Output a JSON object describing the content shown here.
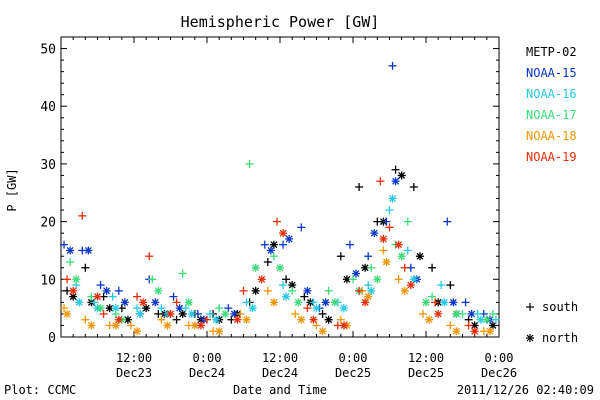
{
  "chart_data": {
    "type": "scatter",
    "title": "Hemispheric Power [GW]",
    "xlabel": "Date and Time",
    "ylabel": "P [GW]",
    "ylim": [
      0,
      52
    ],
    "yticks": [
      0,
      10,
      20,
      30,
      40,
      50
    ],
    "xlim": [
      "2011-12-23 00:00",
      "2011-12-26 00:00"
    ],
    "x_ticks": [
      {
        "x": "2011-12-23 12:00",
        "label": "12:00",
        "sublabel": "Dec23"
      },
      {
        "x": "2011-12-24 00:00",
        "label": "0:00",
        "sublabel": "Dec24"
      },
      {
        "x": "2011-12-24 12:00",
        "label": "12:00",
        "sublabel": "Dec24"
      },
      {
        "x": "2011-12-25 00:00",
        "label": "0:00",
        "sublabel": "Dec25"
      },
      {
        "x": "2011-12-25 12:00",
        "label": "12:00",
        "sublabel": "Dec25"
      },
      {
        "x": "2011-12-26 00:00",
        "label": "0:00",
        "sublabel": "Dec26"
      }
    ],
    "legend": {
      "placement": "right",
      "marker_labels": {
        "south": "south",
        "north": "north"
      }
    },
    "series": [
      {
        "name": "METP-02",
        "color": "#000000",
        "south": [
          [
            "2011-12-23 01:00",
            8
          ],
          [
            "2011-12-23 04:00",
            12
          ],
          [
            "2011-12-23 07:00",
            7
          ],
          [
            "2011-12-23 10:00",
            5
          ],
          [
            "2011-12-23 13:00",
            4
          ],
          [
            "2011-12-23 16:00",
            4
          ],
          [
            "2011-12-23 19:00",
            3
          ],
          [
            "2011-12-23 22:00",
            4
          ],
          [
            "2011-12-24 01:00",
            4
          ],
          [
            "2011-12-24 04:00",
            3
          ],
          [
            "2011-12-24 07:00",
            6
          ],
          [
            "2011-12-24 10:00",
            13
          ],
          [
            "2011-12-24 13:00",
            10
          ],
          [
            "2011-12-24 16:00",
            7
          ],
          [
            "2011-12-24 19:00",
            4
          ],
          [
            "2011-12-24 22:00",
            14
          ],
          [
            "2011-12-25 01:00",
            26
          ],
          [
            "2011-12-25 04:00",
            20
          ],
          [
            "2011-12-25 07:00",
            29
          ],
          [
            "2011-12-25 10:00",
            26
          ],
          [
            "2011-12-25 13:00",
            12
          ],
          [
            "2011-12-25 16:00",
            9
          ],
          [
            "2011-12-25 19:00",
            3
          ],
          [
            "2011-12-25 22:00",
            3
          ]
        ],
        "north": [
          [
            "2011-12-23 02:00",
            7
          ],
          [
            "2011-12-23 05:00",
            6
          ],
          [
            "2011-12-23 08:00",
            5
          ],
          [
            "2011-12-23 11:00",
            3
          ],
          [
            "2011-12-23 14:00",
            5
          ],
          [
            "2011-12-23 17:00",
            4
          ],
          [
            "2011-12-23 20:00",
            4
          ],
          [
            "2011-12-23 23:00",
            3
          ],
          [
            "2011-12-24 02:00",
            3
          ],
          [
            "2011-12-24 05:00",
            4
          ],
          [
            "2011-12-24 08:00",
            8
          ],
          [
            "2011-12-24 11:00",
            16
          ],
          [
            "2011-12-24 14:00",
            9
          ],
          [
            "2011-12-24 17:00",
            6
          ],
          [
            "2011-12-24 20:00",
            3
          ],
          [
            "2011-12-24 23:00",
            10
          ],
          [
            "2011-12-25 02:00",
            12
          ],
          [
            "2011-12-25 05:00",
            20
          ],
          [
            "2011-12-25 08:00",
            28
          ],
          [
            "2011-12-25 11:00",
            14
          ],
          [
            "2011-12-25 14:00",
            6
          ],
          [
            "2011-12-25 17:00",
            4
          ],
          [
            "2011-12-25 20:00",
            2
          ],
          [
            "2011-12-25 23:00",
            2
          ]
        ]
      },
      {
        "name": "NOAA-15",
        "color": "#0a37c8",
        "south": [
          [
            "2011-12-23 00:30",
            16
          ],
          [
            "2011-12-23 03:30",
            15
          ],
          [
            "2011-12-23 06:30",
            9
          ],
          [
            "2011-12-23 09:30",
            8
          ],
          [
            "2011-12-23 14:30",
            10
          ],
          [
            "2011-12-23 18:30",
            7
          ],
          [
            "2011-12-23 22:30",
            4
          ],
          [
            "2011-12-24 03:30",
            5
          ],
          [
            "2011-12-24 09:30",
            16
          ],
          [
            "2011-12-24 12:30",
            16
          ],
          [
            "2011-12-24 15:30",
            19
          ],
          [
            "2011-12-24 18:30",
            5
          ],
          [
            "2011-12-24 23:30",
            16
          ],
          [
            "2011-12-25 02:30",
            14
          ],
          [
            "2011-12-25 05:30",
            20
          ],
          [
            "2011-12-25 06:30",
            47
          ],
          [
            "2011-12-25 09:30",
            12
          ],
          [
            "2011-12-25 15:30",
            20
          ],
          [
            "2011-12-25 18:30",
            6
          ],
          [
            "2011-12-25 21:30",
            4
          ]
        ],
        "north": [
          [
            "2011-12-23 01:30",
            15
          ],
          [
            "2011-12-23 04:30",
            15
          ],
          [
            "2011-12-23 07:30",
            8
          ],
          [
            "2011-12-23 10:30",
            6
          ],
          [
            "2011-12-23 15:30",
            6
          ],
          [
            "2011-12-23 19:30",
            5
          ],
          [
            "2011-12-23 23:30",
            3
          ],
          [
            "2011-12-24 04:30",
            4
          ],
          [
            "2011-12-24 10:30",
            15
          ],
          [
            "2011-12-24 13:30",
            17
          ],
          [
            "2011-12-24 16:30",
            8
          ],
          [
            "2011-12-24 19:30",
            6
          ],
          [
            "2011-12-25 00:30",
            11
          ],
          [
            "2011-12-25 03:30",
            18
          ],
          [
            "2011-12-25 07:00",
            27
          ],
          [
            "2011-12-25 10:30",
            10
          ],
          [
            "2011-12-25 16:30",
            6
          ],
          [
            "2011-12-25 19:30",
            4
          ],
          [
            "2011-12-25 22:30",
            3
          ]
        ]
      },
      {
        "name": "NOAA-16",
        "color": "#28c8e6",
        "south": [
          [
            "2011-12-23 02:30",
            9
          ],
          [
            "2011-12-23 05:30",
            6
          ],
          [
            "2011-12-23 08:30",
            7
          ],
          [
            "2011-12-23 12:30",
            5
          ],
          [
            "2011-12-23 16:30",
            5
          ],
          [
            "2011-12-23 20:30",
            5
          ],
          [
            "2011-12-24 00:30",
            4
          ],
          [
            "2011-12-24 06:30",
            6
          ],
          [
            "2011-12-24 12:30",
            9
          ],
          [
            "2011-12-24 17:30",
            6
          ],
          [
            "2011-12-24 21:30",
            6
          ],
          [
            "2011-12-25 02:30",
            9
          ],
          [
            "2011-12-25 06:00",
            22
          ],
          [
            "2011-12-25 09:00",
            15
          ],
          [
            "2011-12-25 14:30",
            9
          ],
          [
            "2011-12-25 20:30",
            4
          ],
          [
            "2011-12-25 23:30",
            3
          ]
        ],
        "north": [
          [
            "2011-12-23 03:00",
            6
          ],
          [
            "2011-12-23 06:00",
            5
          ],
          [
            "2011-12-23 09:00",
            5
          ],
          [
            "2011-12-23 13:00",
            4
          ],
          [
            "2011-12-23 17:30",
            4
          ],
          [
            "2011-12-23 21:30",
            4
          ],
          [
            "2011-12-24 01:30",
            3
          ],
          [
            "2011-12-24 07:30",
            5
          ],
          [
            "2011-12-24 13:00",
            7
          ],
          [
            "2011-12-24 18:00",
            5
          ],
          [
            "2011-12-24 22:30",
            5
          ],
          [
            "2011-12-25 03:00",
            8
          ],
          [
            "2011-12-25 06:30",
            24
          ],
          [
            "2011-12-25 10:00",
            10
          ],
          [
            "2011-12-25 15:00",
            6
          ],
          [
            "2011-12-25 21:00",
            3
          ]
        ]
      },
      {
        "name": "NOAA-17",
        "color": "#3cdc78",
        "south": [
          [
            "2011-12-23 01:30",
            13
          ],
          [
            "2011-12-23 05:00",
            7
          ],
          [
            "2011-12-23 09:00",
            4
          ],
          [
            "2011-12-23 15:00",
            10
          ],
          [
            "2011-12-23 20:00",
            11
          ],
          [
            "2011-12-24 02:00",
            5
          ],
          [
            "2011-12-24 07:00",
            30
          ],
          [
            "2011-12-24 11:00",
            14
          ],
          [
            "2011-12-24 14:00",
            8
          ],
          [
            "2011-12-24 20:00",
            8
          ],
          [
            "2011-12-25 00:00",
            10
          ],
          [
            "2011-12-25 03:00",
            12
          ],
          [
            "2011-12-25 07:00",
            16
          ],
          [
            "2011-12-25 09:00",
            20
          ],
          [
            "2011-12-25 13:00",
            7
          ],
          [
            "2011-12-25 18:00",
            4
          ],
          [
            "2011-12-25 23:00",
            4
          ]
        ],
        "north": [
          [
            "2011-12-23 02:30",
            10
          ],
          [
            "2011-12-23 06:30",
            5
          ],
          [
            "2011-12-23 10:00",
            3
          ],
          [
            "2011-12-23 16:00",
            8
          ],
          [
            "2011-12-23 21:00",
            6
          ],
          [
            "2011-12-24 03:00",
            4
          ],
          [
            "2011-12-24 08:00",
            12
          ],
          [
            "2011-12-24 12:00",
            12
          ],
          [
            "2011-12-24 15:00",
            6
          ],
          [
            "2011-12-24 21:00",
            6
          ],
          [
            "2011-12-25 01:00",
            8
          ],
          [
            "2011-12-25 04:00",
            10
          ],
          [
            "2011-12-25 08:00",
            14
          ],
          [
            "2011-12-25 12:00",
            6
          ],
          [
            "2011-12-25 17:00",
            4
          ],
          [
            "2011-12-25 22:00",
            3
          ]
        ]
      },
      {
        "name": "NOAA-18",
        "color": "#f0960a",
        "south": [
          [
            "2011-12-23 00:30",
            5
          ],
          [
            "2011-12-23 04:00",
            3
          ],
          [
            "2011-12-23 08:00",
            2
          ],
          [
            "2011-12-23 11:30",
            2
          ],
          [
            "2011-12-23 16:30",
            3
          ],
          [
            "2011-12-23 21:00",
            2
          ],
          [
            "2011-12-24 01:00",
            1
          ],
          [
            "2011-12-24 05:30",
            4
          ],
          [
            "2011-12-24 10:00",
            8
          ],
          [
            "2011-12-24 14:30",
            4
          ],
          [
            "2011-12-24 18:00",
            2
          ],
          [
            "2011-12-24 22:00",
            3
          ],
          [
            "2011-12-25 01:30",
            8
          ],
          [
            "2011-12-25 05:00",
            15
          ],
          [
            "2011-12-25 07:30",
            10
          ],
          [
            "2011-12-25 11:30",
            4
          ],
          [
            "2011-12-25 16:00",
            2
          ],
          [
            "2011-12-25 21:30",
            1
          ]
        ],
        "north": [
          [
            "2011-12-23 01:00",
            4
          ],
          [
            "2011-12-23 05:00",
            2
          ],
          [
            "2011-12-23 09:00",
            2
          ],
          [
            "2011-12-23 12:30",
            1
          ],
          [
            "2011-12-23 17:30",
            2
          ],
          [
            "2011-12-23 22:00",
            2
          ],
          [
            "2011-12-24 02:00",
            1
          ],
          [
            "2011-12-24 06:30",
            3
          ],
          [
            "2011-12-24 11:00",
            6
          ],
          [
            "2011-12-24 15:30",
            3
          ],
          [
            "2011-12-24 19:00",
            1
          ],
          [
            "2011-12-24 23:00",
            2
          ],
          [
            "2011-12-25 02:30",
            7
          ],
          [
            "2011-12-25 05:30",
            13
          ],
          [
            "2011-12-25 08:30",
            8
          ],
          [
            "2011-12-25 12:30",
            3
          ],
          [
            "2011-12-25 17:00",
            1
          ],
          [
            "2011-12-25 22:30",
            1
          ]
        ]
      },
      {
        "name": "NOAA-19",
        "color": "#e62d0a",
        "south": [
          [
            "2011-12-23 01:00",
            10
          ],
          [
            "2011-12-23 03:30",
            21
          ],
          [
            "2011-12-23 07:00",
            4
          ],
          [
            "2011-12-23 12:30",
            7
          ],
          [
            "2011-12-23 14:30",
            14
          ],
          [
            "2011-12-23 19:00",
            6
          ],
          [
            "2011-12-24 00:00",
            3
          ],
          [
            "2011-12-24 06:00",
            8
          ],
          [
            "2011-12-24 11:30",
            20
          ],
          [
            "2011-12-24 16:30",
            5
          ],
          [
            "2011-12-24 21:30",
            2
          ],
          [
            "2011-12-25 01:00",
            8
          ],
          [
            "2011-12-25 04:30",
            27
          ],
          [
            "2011-12-25 06:00",
            19
          ],
          [
            "2011-12-25 08:30",
            12
          ],
          [
            "2011-12-25 13:30",
            6
          ],
          [
            "2011-12-25 19:00",
            2
          ]
        ],
        "north": [
          [
            "2011-12-23 02:00",
            8
          ],
          [
            "2011-12-23 06:00",
            7
          ],
          [
            "2011-12-23 09:30",
            3
          ],
          [
            "2011-12-23 13:30",
            6
          ],
          [
            "2011-12-23 18:00",
            4
          ],
          [
            "2011-12-23 23:00",
            2
          ],
          [
            "2011-12-24 05:00",
            3
          ],
          [
            "2011-12-24 09:00",
            10
          ],
          [
            "2011-12-24 12:30",
            18
          ],
          [
            "2011-12-24 17:30",
            3
          ],
          [
            "2011-12-24 22:30",
            2
          ],
          [
            "2011-12-25 02:00",
            6
          ],
          [
            "2011-12-25 05:00",
            17
          ],
          [
            "2011-12-25 07:30",
            16
          ],
          [
            "2011-12-25 09:30",
            9
          ],
          [
            "2011-12-25 14:00",
            4
          ],
          [
            "2011-12-25 20:00",
            1
          ]
        ]
      }
    ]
  },
  "footer": {
    "left": "Plot: CCMC",
    "right": "2011/12/26 02:40:09"
  }
}
